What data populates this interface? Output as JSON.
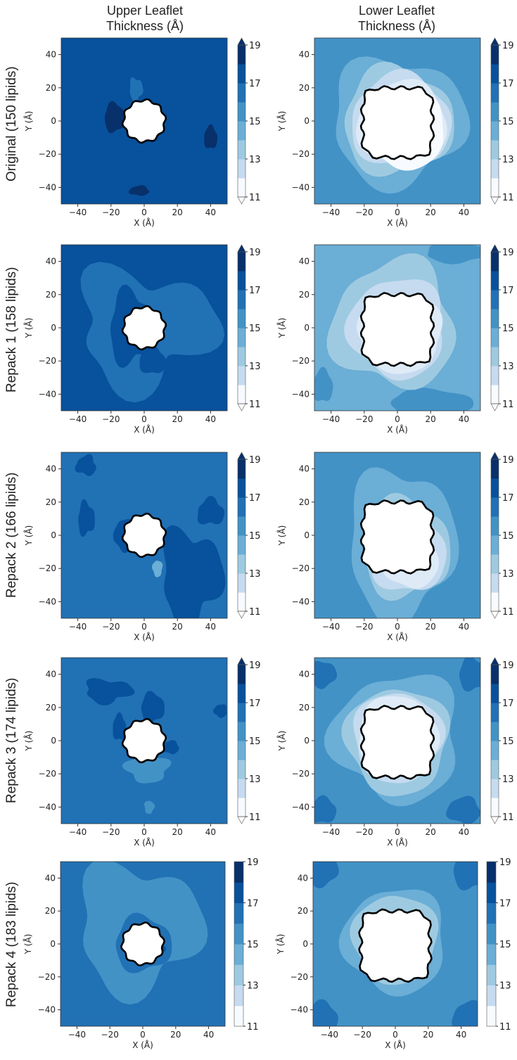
{
  "figure": {
    "column_titles": [
      {
        "line1": "Upper Leaflet",
        "line2": "Thickness (Å)"
      },
      {
        "line1": "Lower Leaflet",
        "line2": "Thickness (Å)"
      }
    ],
    "row_labels": [
      "Original (150 lipids)",
      "Repack 1 (158 lipids)",
      "Repack 2 (166 lipids)",
      "Repack 3 (174 lipids)",
      "Repack 4 (183 lipids)"
    ],
    "xlabel": "X (Å)",
    "ylabel": "Y (Å)",
    "ticks": [
      "−40",
      "−20",
      "0",
      "20",
      "40"
    ],
    "tick_values": [
      -40,
      -20,
      0,
      20,
      40
    ],
    "colorbar_ticks": [
      "19",
      "17",
      "15",
      "13",
      "11"
    ]
  },
  "colors": {
    "levels": [
      "#f7fbff",
      "#deebf7",
      "#c6dbef",
      "#9ecae1",
      "#6baed6",
      "#4292c6",
      "#2171b5",
      "#08519c",
      "#08306b"
    ],
    "outline": "#000000"
  },
  "chart_data": {
    "type": "heatmap",
    "title": "Leaflet thickness maps (filled contour)",
    "columns": [
      "Upper Leaflet Thickness (Å)",
      "Lower Leaflet Thickness (Å)"
    ],
    "rows": [
      "Original (150 lipids)",
      "Repack 1 (158 lipids)",
      "Repack 2 (166 lipids)",
      "Repack 3 (174 lipids)",
      "Repack 4 (183 lipids)"
    ],
    "xlabel": "X (Å)",
    "ylabel": "Y (Å)",
    "xlim": [
      -50,
      50
    ],
    "ylim": [
      -50,
      50
    ],
    "xticks": [
      -40,
      -20,
      0,
      20,
      40
    ],
    "yticks": [
      -40,
      -20,
      0,
      20,
      40
    ],
    "colorbar": {
      "min": 11,
      "max": 19,
      "ticks": [
        11,
        13,
        15,
        17,
        19
      ],
      "levels": 8,
      "cmap": "Blues",
      "extend_rows_1_to_4": "both",
      "extend_row_5": "neither"
    },
    "panels": [
      {
        "row": "Original (150 lipids)",
        "leaflet": "upper",
        "dominant_thickness": 18.5,
        "protein_outline": "circular, radius ~12 Å"
      },
      {
        "row": "Original (150 lipids)",
        "leaflet": "lower",
        "dominant_thickness": 15.5,
        "min_near_protein": 11.5,
        "protein_outline": "square, ~45 Å across"
      },
      {
        "row": "Repack 1 (158 lipids)",
        "leaflet": "upper",
        "dominant_thickness": 18.5,
        "secondary_thickness": 17.5
      },
      {
        "row": "Repack 1 (158 lipids)",
        "leaflet": "lower",
        "dominant_thickness": 15.5,
        "min_near_protein": 12.5
      },
      {
        "row": "Repack 2 (166 lipids)",
        "leaflet": "upper",
        "dominant_thickness": 17.5,
        "secondary_thickness": 18.5
      },
      {
        "row": "Repack 2 (166 lipids)",
        "leaflet": "lower",
        "dominant_thickness": 16.5,
        "min_near_protein": 12.5
      },
      {
        "row": "Repack 3 (174 lipids)",
        "leaflet": "upper",
        "dominant_thickness": 17.5,
        "secondary_thickness": 18.5
      },
      {
        "row": "Repack 3 (174 lipids)",
        "leaflet": "lower",
        "dominant_thickness": 16.5,
        "min_near_protein": 12.5
      },
      {
        "row": "Repack 4 (183 lipids)",
        "leaflet": "upper",
        "dominant_thickness": 17.5,
        "secondary_thickness": 16.5
      },
      {
        "row": "Repack 4 (183 lipids)",
        "leaflet": "lower",
        "dominant_thickness": 16.5,
        "min_near_protein": 13.5
      }
    ]
  }
}
